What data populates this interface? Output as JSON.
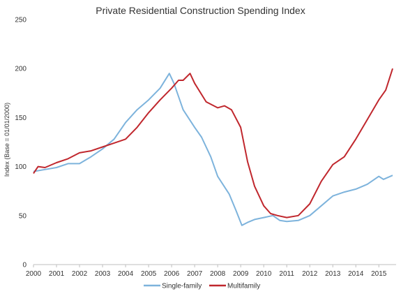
{
  "chart_data": {
    "type": "line",
    "title": "Private Residential Construction Spending Index",
    "xlabel": "",
    "ylabel": "Index (Base = 01/01/2000)",
    "xlim": [
      2000,
      2015.75
    ],
    "ylim": [
      0,
      250
    ],
    "x_ticks": [
      "2000",
      "2001",
      "2002",
      "2003",
      "2004",
      "2005",
      "2006",
      "2007",
      "2008",
      "2009",
      "2010",
      "2011",
      "2012",
      "2013",
      "2014",
      "2015"
    ],
    "y_ticks": [
      "0",
      "50",
      "100",
      "150",
      "200",
      "250"
    ],
    "grid": false,
    "legend_position": "bottom",
    "series": [
      {
        "name": "Single-family",
        "color": "#7db3dc",
        "x": [
          2000,
          2000.5,
          2001,
          2001.5,
          2002,
          2002.5,
          2003,
          2003.5,
          2004,
          2004.5,
          2005,
          2005.5,
          2005.9,
          2006.1,
          2006.5,
          2007,
          2007.3,
          2007.7,
          2008,
          2008.5,
          2008.8,
          2009.05,
          2009.3,
          2009.6,
          2010,
          2010.4,
          2010.7,
          2011,
          2011.5,
          2012,
          2012.5,
          2013,
          2013.5,
          2014,
          2014.5,
          2015,
          2015.2,
          2015.6
        ],
        "values": [
          95,
          97,
          99,
          103,
          103,
          110,
          118,
          128,
          145,
          158,
          168,
          180,
          195,
          185,
          158,
          140,
          130,
          110,
          90,
          72,
          55,
          40,
          43,
          46,
          48,
          50,
          45,
          44,
          45,
          50,
          60,
          70,
          74,
          77,
          82,
          90,
          87,
          91
        ]
      },
      {
        "name": "Multifamily",
        "color": "#c0272d",
        "x": [
          2000,
          2000.2,
          2000.5,
          2001,
          2001.5,
          2002,
          2002.5,
          2003,
          2003.5,
          2004,
          2004.5,
          2005,
          2005.5,
          2006,
          2006.3,
          2006.5,
          2006.8,
          2007,
          2007.5,
          2008,
          2008.3,
          2008.6,
          2009,
          2009.3,
          2009.6,
          2010,
          2010.3,
          2010.6,
          2011,
          2011.5,
          2012,
          2012.5,
          2013,
          2013.5,
          2014,
          2014.5,
          2015,
          2015.3,
          2015.6
        ],
        "values": [
          93,
          100,
          99,
          104,
          108,
          114,
          116,
          120,
          124,
          128,
          140,
          155,
          168,
          180,
          188,
          188,
          195,
          185,
          166,
          160,
          162,
          158,
          140,
          105,
          80,
          60,
          52,
          50,
          48,
          50,
          62,
          85,
          102,
          110,
          128,
          148,
          168,
          178,
          200
        ]
      }
    ]
  }
}
